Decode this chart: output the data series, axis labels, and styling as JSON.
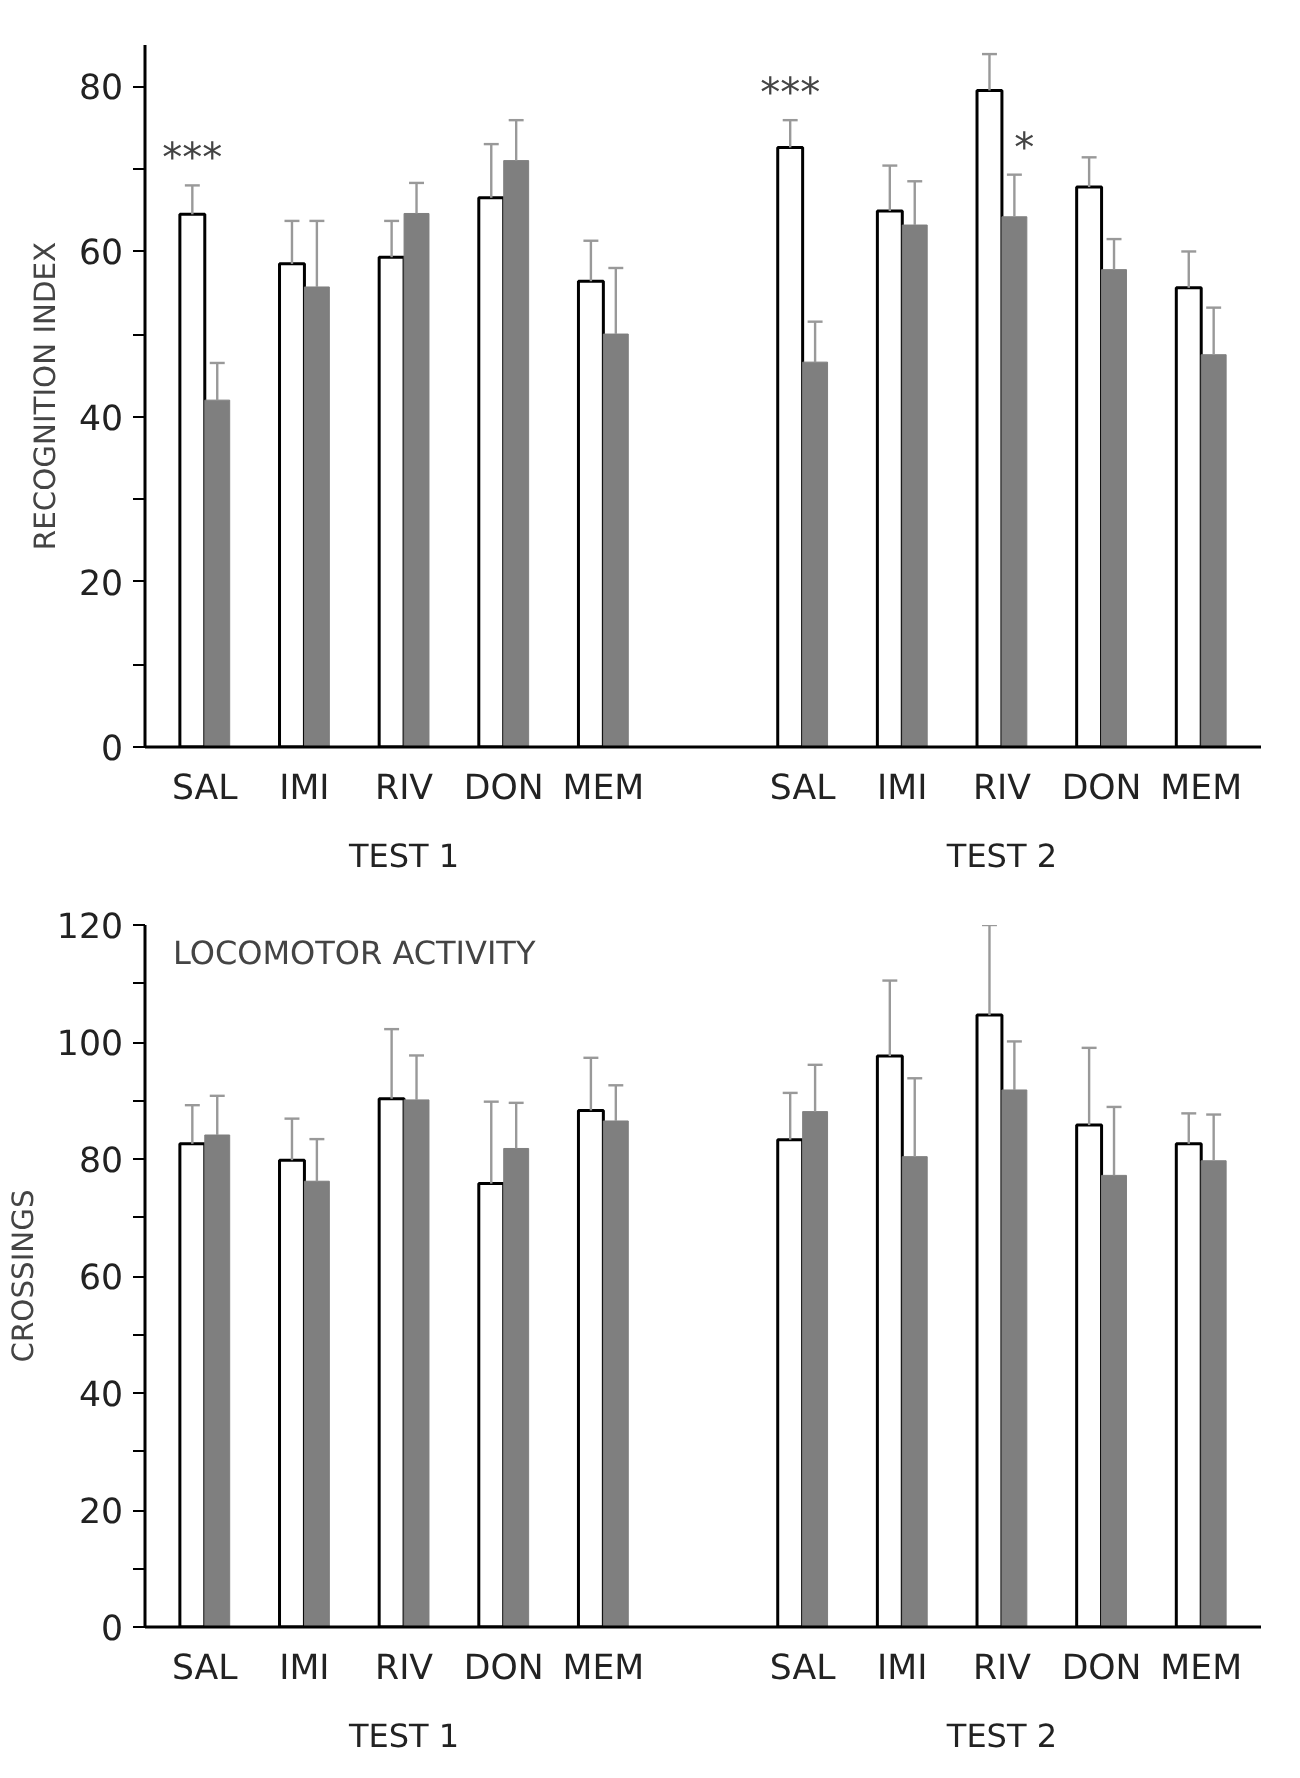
{
  "chart_data": [
    {
      "type": "bar",
      "ylabel": "RECOGNITION INDEX",
      "categories": [
        "SAL",
        "IMI",
        "RIV",
        "DON",
        "MEM",
        null,
        "SAL",
        "IMI",
        "RIV",
        "DON",
        "MEM"
      ],
      "ylim": [
        0,
        85
      ],
      "yticks": [
        0,
        {
          "value": 10,
          "label": null
        },
        20,
        {
          "value": 30,
          "label": null
        },
        40,
        {
          "value": 50,
          "label": null
        },
        60,
        {
          "value": 70,
          "label": null
        },
        80
      ],
      "grid": false,
      "series": [
        {
          "color": "#ffffff",
          "values": [
            64.5,
            58.5,
            59.3,
            66.5,
            56.4,
            null,
            72.6,
            64.9,
            79.5,
            67.8,
            55.6
          ],
          "errors": [
            [
              64.5,
              68
            ],
            [
              58.5,
              63.7
            ],
            [
              59.3,
              63.7
            ],
            [
              66.5,
              73
            ],
            [
              56.4,
              61.3
            ],
            null,
            [
              72.6,
              75.9
            ],
            [
              64.9,
              70.4
            ],
            [
              79.5,
              83.9
            ],
            [
              67.8,
              71.4
            ],
            [
              55.6,
              60
            ]
          ],
          "value_labels": [
            "***",
            null,
            null,
            null,
            null,
            null,
            "***",
            null,
            null,
            null,
            null
          ]
        },
        {
          "color": "#7f7f7f",
          "values": [
            42,
            55.7,
            64.6,
            71,
            50,
            null,
            46.6,
            63.2,
            64.2,
            57.8,
            47.5
          ],
          "errors": [
            [
              42,
              46.5
            ],
            [
              55.7,
              63.7
            ],
            [
              64.6,
              68.3
            ],
            [
              71,
              75.9
            ],
            [
              50,
              58
            ],
            null,
            [
              46.6,
              51.5
            ],
            [
              63.2,
              68.5
            ],
            [
              64.2,
              69.3
            ],
            [
              57.8,
              61.5
            ],
            [
              47.5,
              53.2
            ]
          ],
          "value_labels": [
            null,
            null,
            null,
            null,
            null,
            null,
            null,
            null,
            "*",
            null,
            null
          ]
        }
      ],
      "annotations": [
        "TEST 1",
        "TEST 2"
      ]
    },
    {
      "type": "bar",
      "title": "LOCOMOTOR ACTIVITY",
      "ylabel": "CROSSINGS",
      "categories": [
        "SAL",
        "IMI",
        "RIV",
        "DON",
        "MEM",
        null,
        "SAL",
        "IMI",
        "RIV",
        "DON",
        "MEM"
      ],
      "ylim": [
        0,
        120
      ],
      "yticks": [
        0,
        {
          "value": 10,
          "label": null
        },
        20,
        {
          "value": 30,
          "label": null
        },
        40,
        {
          "value": 50,
          "label": null
        },
        60,
        {
          "value": 70,
          "label": null
        },
        80,
        {
          "value": 90,
          "label": null
        },
        100,
        {
          "value": 110,
          "label": null
        },
        120
      ],
      "grid": false,
      "series": [
        {
          "color": "#ffffff",
          "values": [
            82.6,
            79.8,
            90.3,
            75.8,
            88.3,
            null,
            83.3,
            97.6,
            104.6,
            85.8,
            82.6
          ],
          "errors": [
            [
              82.6,
              89.2
            ],
            [
              79.8,
              86.9
            ],
            [
              90.3,
              102.2
            ],
            [
              75.8,
              89.8
            ],
            [
              88.3,
              97.3
            ],
            null,
            [
              83.3,
              91.3
            ],
            [
              97.6,
              110.5
            ],
            [
              104.6,
              120
            ],
            [
              85.8,
              99
            ],
            [
              82.6,
              87.8
            ]
          ]
        },
        {
          "color": "#7f7f7f",
          "values": [
            84.1,
            76.2,
            90.1,
            81.8,
            86.5,
            null,
            88.1,
            80.4,
            91.8,
            77.2,
            79.7
          ],
          "errors": [
            [
              84.1,
              90.8
            ],
            [
              76.2,
              83.4
            ],
            [
              90.1,
              97.7
            ],
            [
              81.8,
              89.6
            ],
            [
              86.5,
              92.6
            ],
            null,
            [
              88.1,
              96.1
            ],
            [
              80.4,
              93.8
            ],
            [
              91.8,
              100.1
            ],
            [
              77.2,
              88.9
            ],
            [
              79.7,
              87.6
            ]
          ]
        }
      ],
      "annotations": [
        "TEST 1",
        "TEST 2"
      ]
    }
  ]
}
